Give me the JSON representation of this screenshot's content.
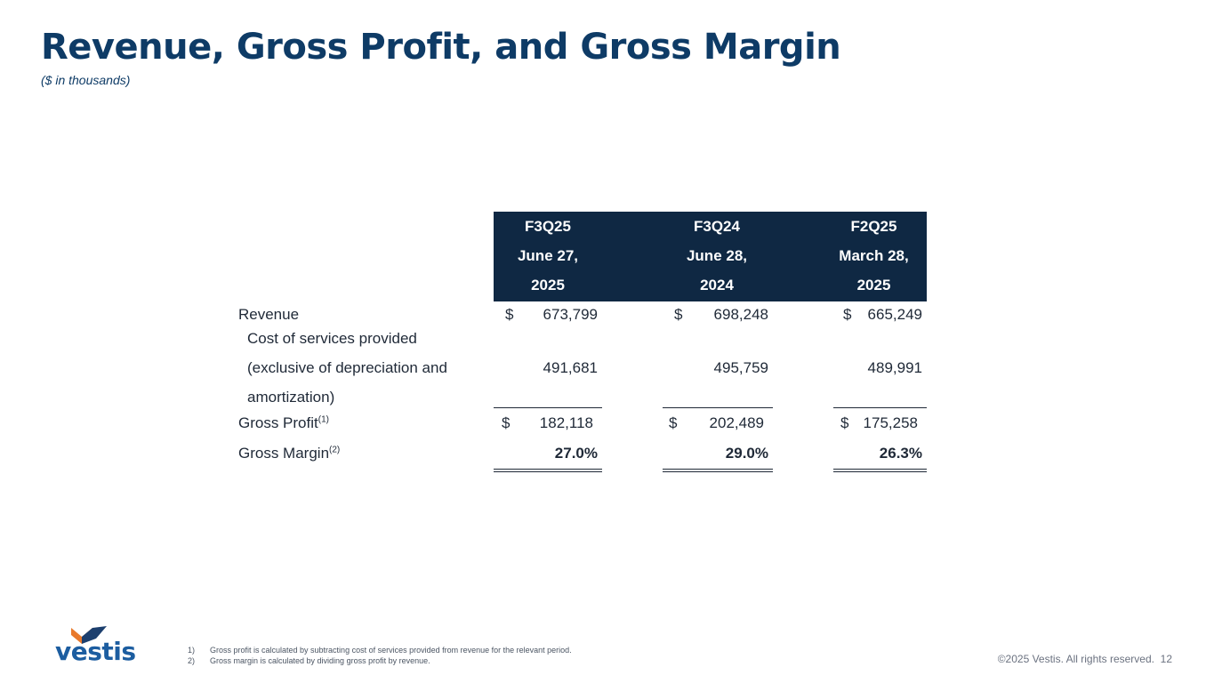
{
  "header": {
    "title": "Revenue, Gross Profit, and Gross Margin",
    "subtitle": "($ in thousands)"
  },
  "table": {
    "columns": [
      {
        "period": "F3Q25",
        "date_line1": "June 27,",
        "date_line2": "2025"
      },
      {
        "period": "F3Q24",
        "date_line1": "June 28,",
        "date_line2": "2024"
      },
      {
        "period": "F2Q25",
        "date_line1": "March 28,",
        "date_line2": "2025"
      }
    ],
    "rows": {
      "revenue": {
        "label": "Revenue",
        "currency": "$",
        "values": [
          "673,799",
          "698,248",
          "665,249"
        ]
      },
      "cost": {
        "label_line1": "Cost of services provided",
        "label_line2": "(exclusive of depreciation and",
        "label_line3": "amortization)",
        "values": [
          "491,681",
          "495,759",
          "489,991"
        ]
      },
      "gross_profit": {
        "label": "Gross Profit",
        "footnote_ref": "(1)",
        "currency": "$",
        "values": [
          "182,118",
          "202,489",
          "175,258"
        ]
      },
      "gross_margin": {
        "label": "Gross Margin",
        "footnote_ref": "(2)",
        "values": [
          "27.0%",
          "29.0%",
          "26.3%"
        ]
      }
    }
  },
  "footnotes": [
    {
      "num": "1)",
      "text": "Gross profit is calculated by subtracting cost of services provided from revenue for the relevant period."
    },
    {
      "num": "2)",
      "text": "Gross margin is calculated by dividing gross profit by revenue."
    }
  ],
  "footer": {
    "logo_text": "vestis",
    "copyright": "©2025 Vestis. All rights reserved.",
    "page_number": "12"
  },
  "colors": {
    "title": "#0e3b66",
    "header_bg": "#0f2843",
    "logo_orange": "#e8792b",
    "logo_navy": "#1c3f6e",
    "logo_blue": "#1c5da0"
  }
}
